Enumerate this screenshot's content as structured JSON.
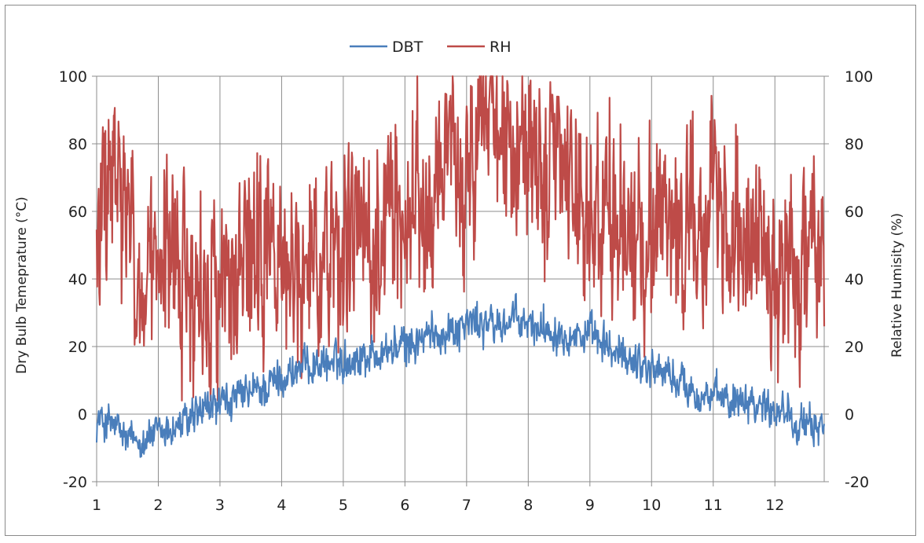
{
  "chart_data": {
    "type": "line",
    "title": "",
    "xlabel": "",
    "ylabel": "Dry Bulb Temeprature (°C)",
    "y2label": "Relative Humisity (%)",
    "xlim": [
      1,
      12.8
    ],
    "ylim": [
      -20,
      100
    ],
    "y2lim": [
      -20,
      100
    ],
    "x_ticks": [
      "1",
      "2",
      "3",
      "4",
      "5",
      "6",
      "7",
      "8",
      "9",
      "10",
      "11",
      "12"
    ],
    "y_ticks": [
      "-20",
      "0",
      "20",
      "40",
      "60",
      "80",
      "100"
    ],
    "y2_ticks": [
      "-20",
      "0",
      "20",
      "40",
      "60",
      "80",
      "100"
    ],
    "grid": true,
    "legend_position": "top-center",
    "series": [
      {
        "name": "DBT",
        "color": "#4a7ebb",
        "x": [
          1.0,
          1.25,
          1.5,
          1.75,
          2.0,
          2.25,
          2.5,
          2.75,
          3.0,
          3.25,
          3.5,
          3.75,
          4.0,
          4.25,
          4.5,
          4.75,
          5.0,
          5.25,
          5.5,
          5.75,
          6.0,
          6.25,
          6.5,
          6.75,
          7.0,
          7.25,
          7.5,
          7.75,
          8.0,
          8.25,
          8.5,
          8.75,
          9.0,
          9.25,
          9.5,
          9.75,
          10.0,
          10.25,
          10.5,
          10.75,
          11.0,
          11.25,
          11.5,
          11.75,
          12.0,
          12.25,
          12.5,
          12.8
        ],
        "values": [
          -2,
          -3,
          -8,
          -7,
          -6,
          -4,
          -2,
          1,
          3,
          4,
          6,
          8,
          11,
          13,
          15,
          15,
          16,
          17,
          18,
          19,
          20,
          22,
          24,
          25,
          27,
          27,
          26,
          28,
          26,
          26,
          25,
          24,
          23,
          20,
          17,
          16,
          14,
          12,
          9,
          6,
          5,
          4,
          6,
          3,
          2,
          1,
          -5,
          -2
        ],
        "range": [
          -13,
          36
        ]
      },
      {
        "name": "RH",
        "color": "#be4b48",
        "x": [
          1.0,
          1.25,
          1.5,
          1.75,
          2.0,
          2.25,
          2.5,
          2.75,
          3.0,
          3.25,
          3.5,
          3.75,
          4.0,
          4.25,
          4.5,
          4.75,
          5.0,
          5.25,
          5.5,
          5.75,
          6.0,
          6.25,
          6.5,
          6.75,
          7.0,
          7.25,
          7.5,
          7.75,
          8.0,
          8.25,
          8.5,
          8.75,
          9.0,
          9.25,
          9.5,
          9.75,
          10.0,
          10.25,
          10.5,
          10.75,
          11.0,
          11.25,
          11.5,
          11.75,
          12.0,
          12.25,
          12.5,
          12.8
        ],
        "values": [
          50,
          70,
          55,
          30,
          40,
          45,
          40,
          35,
          40,
          38,
          42,
          45,
          45,
          40,
          48,
          50,
          50,
          52,
          55,
          58,
          60,
          62,
          68,
          70,
          75,
          85,
          88,
          85,
          75,
          72,
          70,
          65,
          60,
          60,
          55,
          50,
          58,
          62,
          55,
          50,
          55,
          60,
          58,
          50,
          45,
          42,
          40,
          45
        ],
        "range": [
          4,
          100
        ]
      }
    ]
  }
}
